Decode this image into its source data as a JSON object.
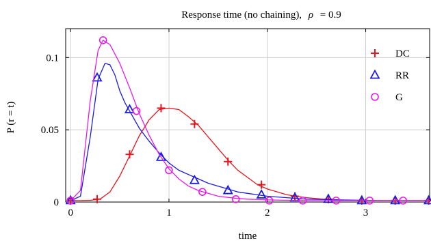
{
  "chart_data": {
    "type": "line",
    "title_prefix": "Response time (no chaining),",
    "title_symbol": "ρ",
    "title_suffix": "= 0.9",
    "xlabel": "time",
    "ylabel": "P (r = t)",
    "xlim": [
      -0.05,
      3.65
    ],
    "ylim": [
      0,
      0.12
    ],
    "xticks": [
      0,
      1,
      2,
      3
    ],
    "xtick_labels": [
      "0",
      "1",
      "2",
      "3"
    ],
    "yticks": [
      0,
      0.05,
      0.1
    ],
    "ytick_labels": [
      "0",
      "0.05",
      "0.1"
    ],
    "grid": true,
    "legend_position": "top-right",
    "series": [
      {
        "name": "DC",
        "color": "#e8141b",
        "marker": "plus",
        "x": [
          0,
          0.1,
          0.2,
          0.3,
          0.4,
          0.5,
          0.6,
          0.7,
          0.8,
          0.9,
          1.0,
          1.1,
          1.2,
          1.3,
          1.4,
          1.5,
          1.6,
          1.7,
          1.8,
          1.9,
          2.0,
          2.2,
          2.4,
          2.6,
          2.8,
          3.0,
          3.2,
          3.4,
          3.65
        ],
        "values": [
          0.001,
          0.001,
          0.0012,
          0.002,
          0.007,
          0.018,
          0.032,
          0.046,
          0.057,
          0.064,
          0.065,
          0.064,
          0.059,
          0.053,
          0.045,
          0.037,
          0.029,
          0.022,
          0.017,
          0.012,
          0.009,
          0.005,
          0.003,
          0.0018,
          0.0012,
          0.001,
          0.001,
          0.001,
          0.001
        ],
        "marker_x": [
          0,
          0.27,
          0.6,
          0.92,
          1.26,
          1.6,
          1.94,
          2.28,
          2.62,
          2.96,
          3.3,
          3.64
        ],
        "marker_y": [
          0.001,
          0.002,
          0.033,
          0.065,
          0.054,
          0.028,
          0.012,
          0.004,
          0.002,
          0.001,
          0.001,
          0.001
        ]
      },
      {
        "name": "RR",
        "color": "#1a1ae6",
        "marker": "triangle",
        "x": [
          0,
          0.1,
          0.2,
          0.28,
          0.35,
          0.4,
          0.45,
          0.5,
          0.55,
          0.6,
          0.7,
          0.8,
          0.9,
          1.0,
          1.1,
          1.2,
          1.3,
          1.4,
          1.5,
          1.6,
          1.7,
          1.8,
          1.9,
          2.0,
          2.2,
          2.4,
          2.6,
          2.8,
          3.0,
          3.2,
          3.4,
          3.65
        ],
        "values": [
          0.001,
          0.004,
          0.045,
          0.085,
          0.096,
          0.095,
          0.088,
          0.077,
          0.069,
          0.063,
          0.051,
          0.042,
          0.034,
          0.027,
          0.022,
          0.019,
          0.016,
          0.013,
          0.011,
          0.009,
          0.007,
          0.006,
          0.005,
          0.004,
          0.003,
          0.002,
          0.0017,
          0.0014,
          0.0012,
          0.001,
          0.001,
          0.001
        ],
        "marker_x": [
          0,
          0.27,
          0.6,
          0.92,
          1.26,
          1.6,
          1.94,
          2.28,
          2.62,
          2.96,
          3.3,
          3.64
        ],
        "marker_y": [
          0.001,
          0.086,
          0.064,
          0.031,
          0.015,
          0.008,
          0.005,
          0.003,
          0.002,
          0.001,
          0.001,
          0.001
        ]
      },
      {
        "name": "G",
        "color": "#e81ae8",
        "marker": "circle",
        "x": [
          0,
          0.1,
          0.2,
          0.28,
          0.33,
          0.4,
          0.5,
          0.6,
          0.7,
          0.8,
          0.9,
          1.0,
          1.1,
          1.2,
          1.3,
          1.4,
          1.5,
          1.6,
          1.7,
          1.8,
          2.0,
          2.2,
          2.4,
          2.6,
          2.8,
          3.0,
          3.2,
          3.4,
          3.65
        ],
        "values": [
          0.001,
          0.008,
          0.07,
          0.105,
          0.112,
          0.109,
          0.096,
          0.079,
          0.061,
          0.046,
          0.033,
          0.023,
          0.016,
          0.011,
          0.008,
          0.006,
          0.004,
          0.0032,
          0.0025,
          0.002,
          0.0015,
          0.0012,
          0.001,
          0.001,
          0.001,
          0.001,
          0.001,
          0.001,
          0.001
        ],
        "marker_x": [
          0,
          0.33,
          0.67,
          1.0,
          1.34,
          1.68,
          2.02,
          2.36,
          2.7,
          3.04,
          3.38
        ],
        "marker_y": [
          0.001,
          0.112,
          0.063,
          0.022,
          0.007,
          0.002,
          0.001,
          0.001,
          0.001,
          0.001,
          0.001
        ]
      }
    ]
  }
}
